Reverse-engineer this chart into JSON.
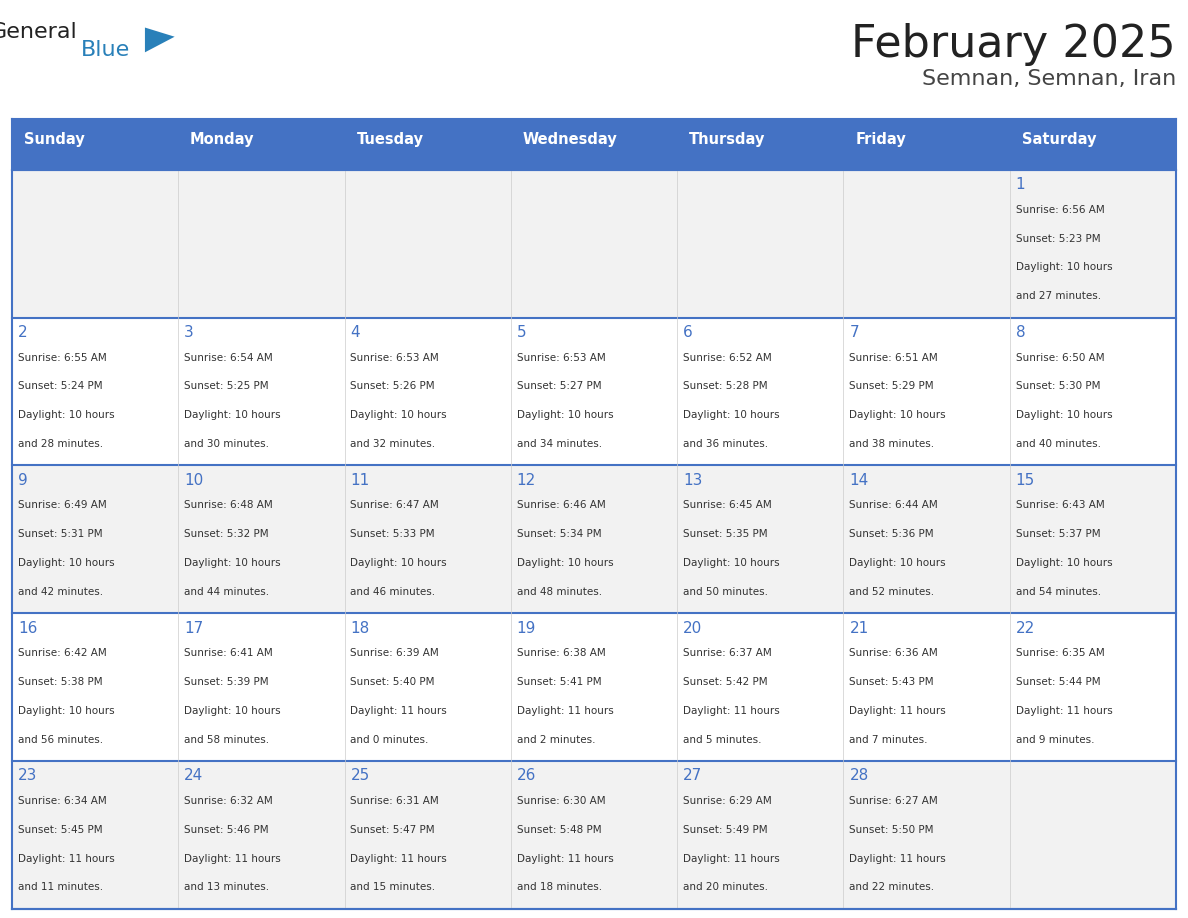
{
  "title": "February 2025",
  "subtitle": "Semnan, Semnan, Iran",
  "days_of_week": [
    "Sunday",
    "Monday",
    "Tuesday",
    "Wednesday",
    "Thursday",
    "Friday",
    "Saturday"
  ],
  "header_bg": "#4472C4",
  "header_text_color": "#FFFFFF",
  "cell_bg_light": "#F2F2F2",
  "cell_bg_white": "#FFFFFF",
  "day_number_color": "#4472C4",
  "text_color": "#333333",
  "line_color": "#4472C4",
  "calendar_data": [
    [
      null,
      null,
      null,
      null,
      null,
      null,
      {
        "day": 1,
        "sunrise": "6:56 AM",
        "sunset": "5:23 PM",
        "daylight": "10 hours and 27 minutes."
      }
    ],
    [
      {
        "day": 2,
        "sunrise": "6:55 AM",
        "sunset": "5:24 PM",
        "daylight": "10 hours and 28 minutes."
      },
      {
        "day": 3,
        "sunrise": "6:54 AM",
        "sunset": "5:25 PM",
        "daylight": "10 hours and 30 minutes."
      },
      {
        "day": 4,
        "sunrise": "6:53 AM",
        "sunset": "5:26 PM",
        "daylight": "10 hours and 32 minutes."
      },
      {
        "day": 5,
        "sunrise": "6:53 AM",
        "sunset": "5:27 PM",
        "daylight": "10 hours and 34 minutes."
      },
      {
        "day": 6,
        "sunrise": "6:52 AM",
        "sunset": "5:28 PM",
        "daylight": "10 hours and 36 minutes."
      },
      {
        "day": 7,
        "sunrise": "6:51 AM",
        "sunset": "5:29 PM",
        "daylight": "10 hours and 38 minutes."
      },
      {
        "day": 8,
        "sunrise": "6:50 AM",
        "sunset": "5:30 PM",
        "daylight": "10 hours and 40 minutes."
      }
    ],
    [
      {
        "day": 9,
        "sunrise": "6:49 AM",
        "sunset": "5:31 PM",
        "daylight": "10 hours and 42 minutes."
      },
      {
        "day": 10,
        "sunrise": "6:48 AM",
        "sunset": "5:32 PM",
        "daylight": "10 hours and 44 minutes."
      },
      {
        "day": 11,
        "sunrise": "6:47 AM",
        "sunset": "5:33 PM",
        "daylight": "10 hours and 46 minutes."
      },
      {
        "day": 12,
        "sunrise": "6:46 AM",
        "sunset": "5:34 PM",
        "daylight": "10 hours and 48 minutes."
      },
      {
        "day": 13,
        "sunrise": "6:45 AM",
        "sunset": "5:35 PM",
        "daylight": "10 hours and 50 minutes."
      },
      {
        "day": 14,
        "sunrise": "6:44 AM",
        "sunset": "5:36 PM",
        "daylight": "10 hours and 52 minutes."
      },
      {
        "day": 15,
        "sunrise": "6:43 AM",
        "sunset": "5:37 PM",
        "daylight": "10 hours and 54 minutes."
      }
    ],
    [
      {
        "day": 16,
        "sunrise": "6:42 AM",
        "sunset": "5:38 PM",
        "daylight": "10 hours and 56 minutes."
      },
      {
        "day": 17,
        "sunrise": "6:41 AM",
        "sunset": "5:39 PM",
        "daylight": "10 hours and 58 minutes."
      },
      {
        "day": 18,
        "sunrise": "6:39 AM",
        "sunset": "5:40 PM",
        "daylight": "11 hours and 0 minutes."
      },
      {
        "day": 19,
        "sunrise": "6:38 AM",
        "sunset": "5:41 PM",
        "daylight": "11 hours and 2 minutes."
      },
      {
        "day": 20,
        "sunrise": "6:37 AM",
        "sunset": "5:42 PM",
        "daylight": "11 hours and 5 minutes."
      },
      {
        "day": 21,
        "sunrise": "6:36 AM",
        "sunset": "5:43 PM",
        "daylight": "11 hours and 7 minutes."
      },
      {
        "day": 22,
        "sunrise": "6:35 AM",
        "sunset": "5:44 PM",
        "daylight": "11 hours and 9 minutes."
      }
    ],
    [
      {
        "day": 23,
        "sunrise": "6:34 AM",
        "sunset": "5:45 PM",
        "daylight": "11 hours and 11 minutes."
      },
      {
        "day": 24,
        "sunrise": "6:32 AM",
        "sunset": "5:46 PM",
        "daylight": "11 hours and 13 minutes."
      },
      {
        "day": 25,
        "sunrise": "6:31 AM",
        "sunset": "5:47 PM",
        "daylight": "11 hours and 15 minutes."
      },
      {
        "day": 26,
        "sunrise": "6:30 AM",
        "sunset": "5:48 PM",
        "daylight": "11 hours and 18 minutes."
      },
      {
        "day": 27,
        "sunrise": "6:29 AM",
        "sunset": "5:49 PM",
        "daylight": "11 hours and 20 minutes."
      },
      {
        "day": 28,
        "sunrise": "6:27 AM",
        "sunset": "5:50 PM",
        "daylight": "11 hours and 22 minutes."
      },
      null
    ]
  ],
  "logo_text_general": "General",
  "logo_text_blue": "Blue",
  "logo_color_general": "#222222",
  "logo_color_blue": "#2980B9"
}
